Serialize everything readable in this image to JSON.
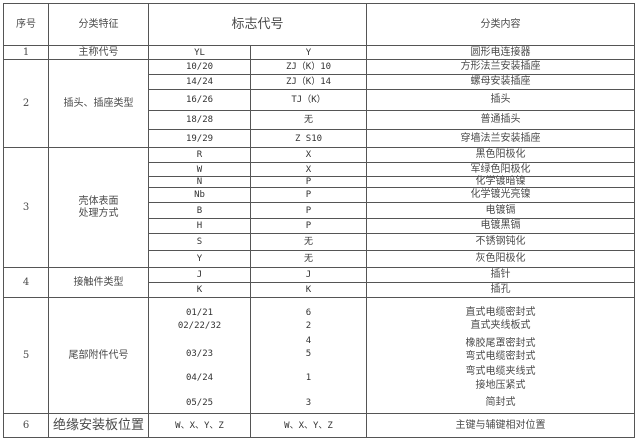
{
  "header": {
    "no": "序号",
    "feature": "分类特征",
    "code": "标志代号",
    "content": "分类内容"
  },
  "rows": [
    {
      "no": "1",
      "feature": "主称代号",
      "items": [
        {
          "a": "YL",
          "b": "Y",
          "c": "圆形电连接器"
        }
      ]
    },
    {
      "no": "2",
      "feature": "插头、插座类型",
      "items": [
        {
          "a": "10/20",
          "b": "ZJ（K）10",
          "c": "方形法兰安装插座"
        },
        {
          "a": "14/24",
          "b": "ZJ（K）14",
          "c": "螺母安装插座"
        },
        {
          "a": "16/26",
          "b": "TJ（K）",
          "c": "插头"
        },
        {
          "a": "18/28",
          "b": "无",
          "c": "普通插头"
        },
        {
          "a": "19/29",
          "b": "Z S10",
          "c": "穿墙法兰安装插座"
        }
      ]
    },
    {
      "no": "3",
      "feature": "壳体表面\n处理方式",
      "items": [
        {
          "a": "R",
          "b": "X",
          "c": "黑色阳极化"
        },
        {
          "a": "W",
          "b": "X",
          "c": "军绿色阳极化"
        },
        {
          "a": "N",
          "b": "P",
          "c": "化学镀暗镍"
        },
        {
          "a": "Nb",
          "b": "P",
          "c": "化学镀光亮镍"
        },
        {
          "a": "B",
          "b": "P",
          "c": "电镀镉"
        },
        {
          "a": "H",
          "b": "P",
          "c": "电镀黑镉"
        },
        {
          "a": "S",
          "b": "无",
          "c": "不锈钢钝化"
        },
        {
          "a": "Y",
          "b": "无",
          "c": "灰色阳极化"
        }
      ]
    },
    {
      "no": "4",
      "feature": "接触件类型",
      "items": [
        {
          "a": "J",
          "b": "J",
          "c": "插针"
        },
        {
          "a": "K",
          "b": "K",
          "c": "插孔"
        }
      ]
    },
    {
      "no": "5",
      "feature": "尾部附件代号",
      "col_a": [
        "01/21",
        "02/22/32",
        "03/23",
        "04/24",
        "05/25"
      ],
      "col_b": [
        "6",
        "2",
        "4",
        "5",
        "1",
        "3"
      ],
      "col_c": [
        "直式电缆密封式",
        "直式夹线板式",
        "橡胶尾罩密封式",
        "弯式电缆密封式",
        "弯式电缆夹线式",
        "接地压紧式",
        "简封式"
      ]
    },
    {
      "no": "6",
      "feature": "绝缘安装板位置",
      "items": [
        {
          "a": "W、X、Y、Z",
          "b": "W、X、Y、Z",
          "c": "主键与辅键相对位置"
        }
      ]
    }
  ]
}
